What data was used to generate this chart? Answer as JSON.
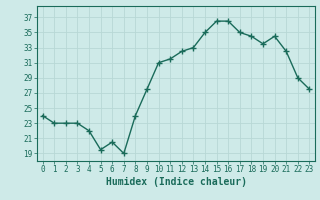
{
  "x": [
    0,
    1,
    2,
    3,
    4,
    5,
    6,
    7,
    8,
    9,
    10,
    11,
    12,
    13,
    14,
    15,
    16,
    17,
    18,
    19,
    20,
    21,
    22,
    23
  ],
  "y": [
    24.0,
    23.0,
    23.0,
    23.0,
    22.0,
    19.5,
    20.5,
    19.0,
    24.0,
    27.5,
    31.0,
    31.5,
    32.5,
    33.0,
    35.0,
    36.5,
    36.5,
    35.0,
    34.5,
    33.5,
    34.5,
    32.5,
    29.0,
    27.5
  ],
  "line_color": "#1a6b5a",
  "marker": "+",
  "marker_size": 4,
  "line_width": 1.0,
  "bg_color": "#ceeae8",
  "grid_color": "#b8d8d5",
  "xlabel": "Humidex (Indice chaleur)",
  "xlabel_fontsize": 7,
  "yticks": [
    19,
    21,
    23,
    25,
    27,
    29,
    31,
    33,
    35,
    37
  ],
  "xticks": [
    0,
    1,
    2,
    3,
    4,
    5,
    6,
    7,
    8,
    9,
    10,
    11,
    12,
    13,
    14,
    15,
    16,
    17,
    18,
    19,
    20,
    21,
    22,
    23
  ],
  "ylim": [
    18.0,
    38.5
  ],
  "xlim": [
    -0.5,
    23.5
  ],
  "tick_fontsize": 5.5,
  "tick_color": "#1a6b5a",
  "spine_color": "#1a6b5a"
}
